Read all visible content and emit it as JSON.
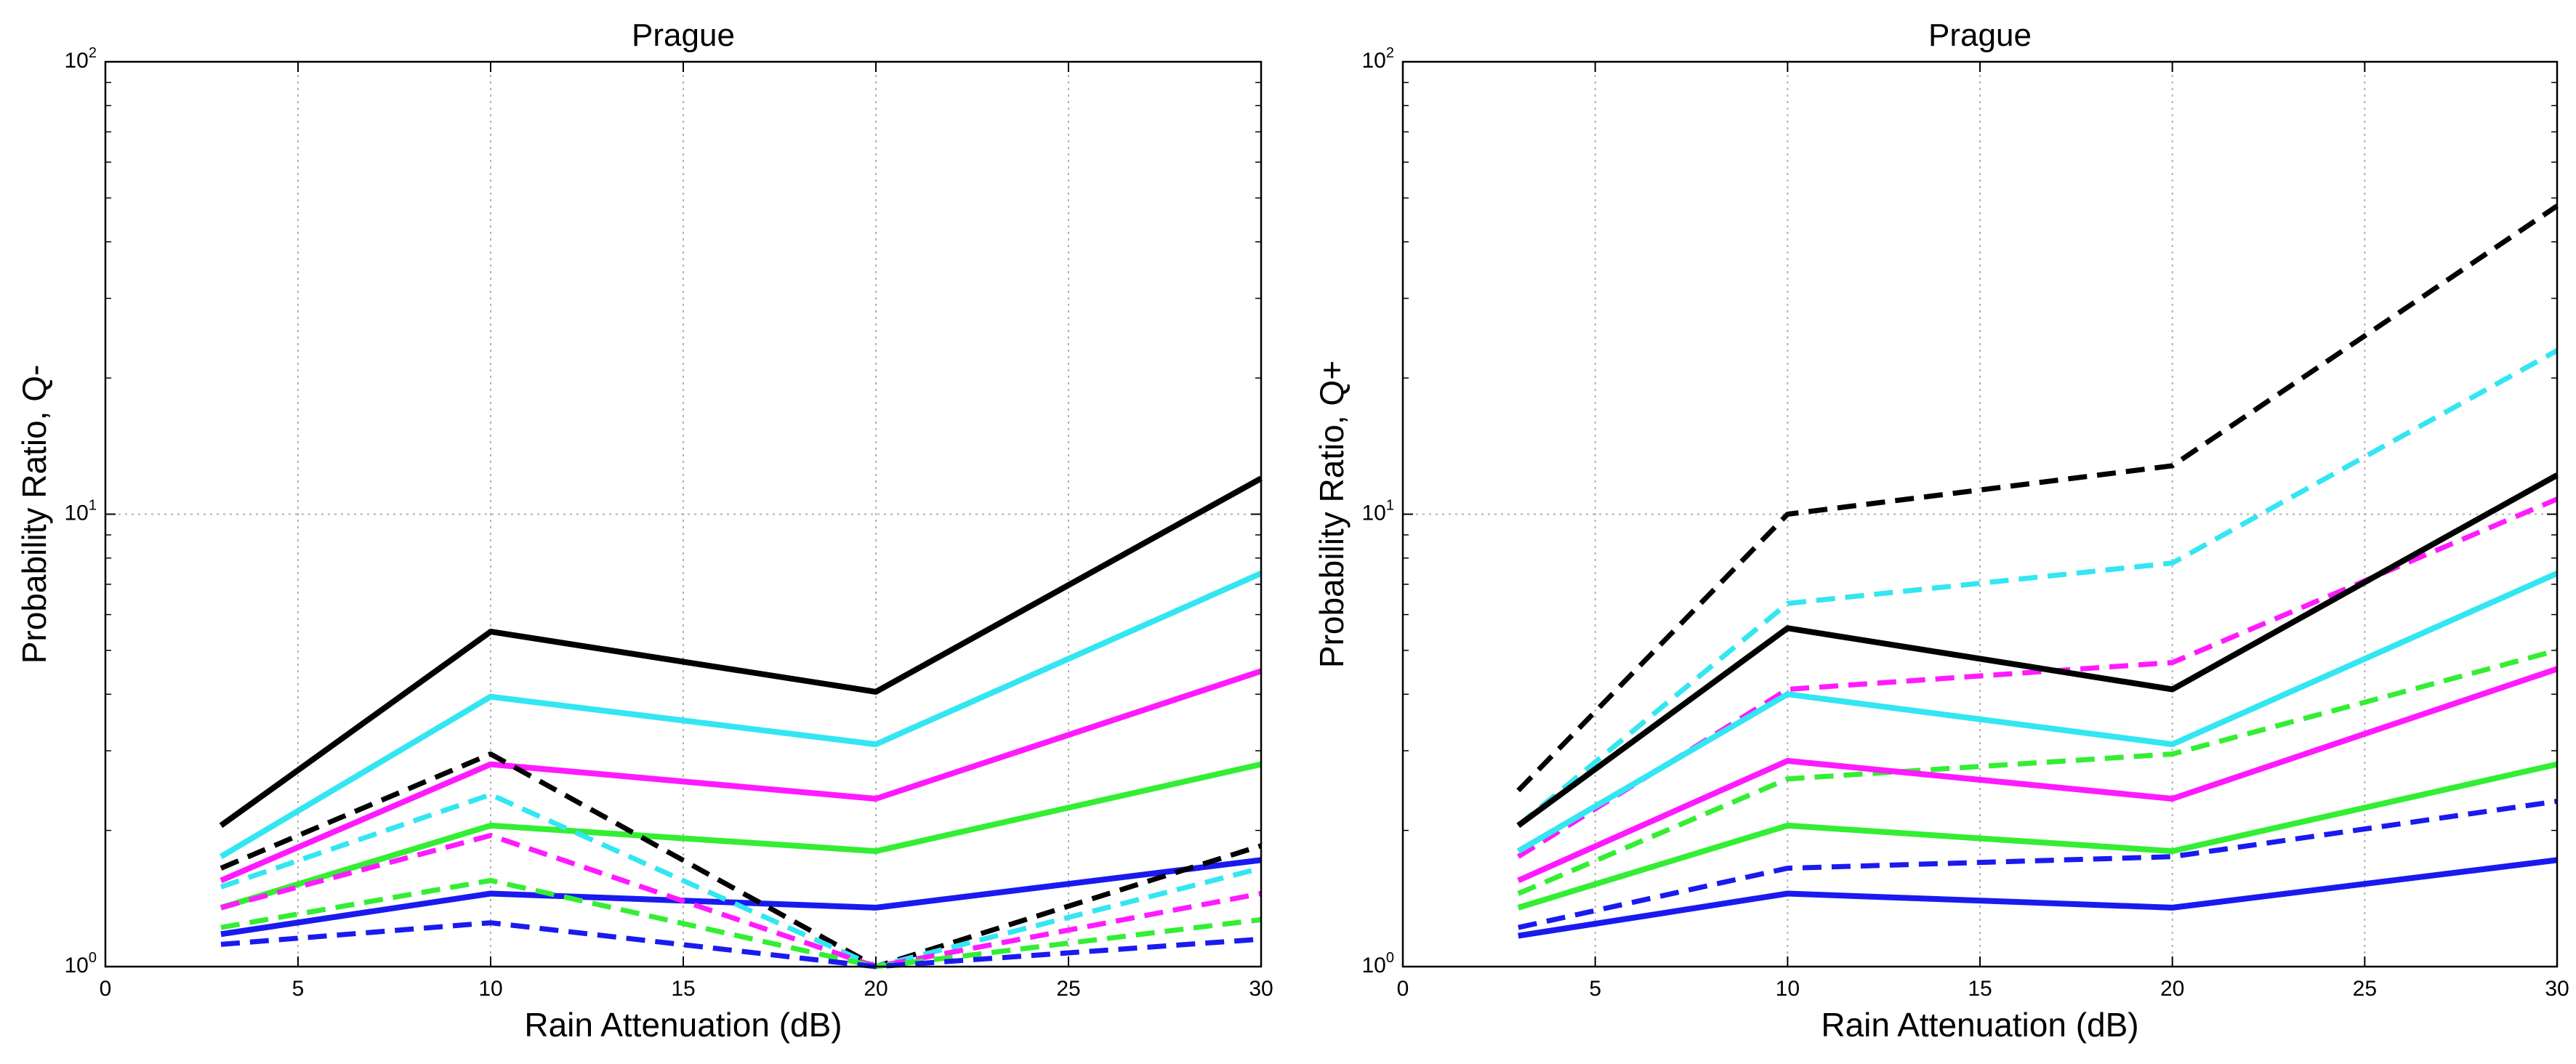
{
  "chart_data": [
    {
      "type": "line",
      "title": "Prague",
      "xlabel": "Rain Attenuation (dB)",
      "ylabel": "Probability Ratio, Q-",
      "xlim": [
        0,
        30
      ],
      "ylim": [
        1,
        100
      ],
      "yscale": "log",
      "grid": true,
      "x_ticks": [
        0,
        5,
        10,
        15,
        20,
        25,
        30
      ],
      "y_ticks": [
        1,
        10,
        100
      ],
      "x": [
        3,
        10,
        20,
        30
      ],
      "series": [
        {
          "color": "#000000",
          "style": "solid",
          "values": [
            2.05,
            5.5,
            4.05,
            12.0
          ]
        },
        {
          "color": "#33e6f2",
          "style": "solid",
          "values": [
            1.75,
            3.95,
            3.1,
            7.4
          ]
        },
        {
          "color": "#ff1aff",
          "style": "solid",
          "values": [
            1.55,
            2.8,
            2.35,
            4.5
          ]
        },
        {
          "color": "#33ee33",
          "style": "solid",
          "values": [
            1.35,
            2.05,
            1.8,
            2.8
          ]
        },
        {
          "color": "#1a1af0",
          "style": "solid",
          "values": [
            1.18,
            1.45,
            1.35,
            1.72
          ]
        },
        {
          "color": "#000000",
          "style": "dashed",
          "values": [
            1.65,
            2.95,
            1.0,
            1.85
          ]
        },
        {
          "color": "#33e6f2",
          "style": "dashed",
          "values": [
            1.5,
            2.4,
            1.0,
            1.65
          ]
        },
        {
          "color": "#ff1aff",
          "style": "dashed",
          "values": [
            1.35,
            1.95,
            1.0,
            1.45
          ]
        },
        {
          "color": "#33ee33",
          "style": "dashed",
          "values": [
            1.22,
            1.55,
            1.0,
            1.27
          ]
        },
        {
          "color": "#1a1af0",
          "style": "dashed",
          "values": [
            1.12,
            1.25,
            1.0,
            1.15
          ]
        }
      ]
    },
    {
      "type": "line",
      "title": "Prague",
      "xlabel": "Rain Attenuation (dB)",
      "ylabel": "Probability Ratio, Q+",
      "xlim": [
        0,
        30
      ],
      "ylim": [
        1,
        100
      ],
      "yscale": "log",
      "grid": true,
      "x_ticks": [
        0,
        5,
        10,
        15,
        20,
        25,
        30
      ],
      "y_ticks": [
        1,
        10,
        100
      ],
      "x": [
        3,
        10,
        20,
        30
      ],
      "series": [
        {
          "color": "#000000",
          "style": "dashed",
          "values": [
            2.45,
            10.0,
            12.8,
            48.0
          ]
        },
        {
          "color": "#33e6f2",
          "style": "dashed",
          "values": [
            2.05,
            6.35,
            7.8,
            23.0
          ]
        },
        {
          "color": "#ff1aff",
          "style": "dashed",
          "values": [
            1.75,
            4.1,
            4.7,
            10.8
          ]
        },
        {
          "color": "#33ee33",
          "style": "dashed",
          "values": [
            1.45,
            2.6,
            2.95,
            5.0
          ]
        },
        {
          "color": "#1a1af0",
          "style": "dashed",
          "values": [
            1.22,
            1.65,
            1.75,
            2.32
          ]
        },
        {
          "color": "#000000",
          "style": "solid",
          "values": [
            2.05,
            5.6,
            4.1,
            12.2
          ]
        },
        {
          "color": "#33e6f2",
          "style": "solid",
          "values": [
            1.8,
            4.0,
            3.1,
            7.4
          ]
        },
        {
          "color": "#ff1aff",
          "style": "solid",
          "values": [
            1.55,
            2.85,
            2.35,
            4.55
          ]
        },
        {
          "color": "#33ee33",
          "style": "solid",
          "values": [
            1.35,
            2.05,
            1.8,
            2.8
          ]
        },
        {
          "color": "#1a1af0",
          "style": "solid",
          "values": [
            1.17,
            1.45,
            1.35,
            1.72
          ]
        }
      ]
    }
  ]
}
